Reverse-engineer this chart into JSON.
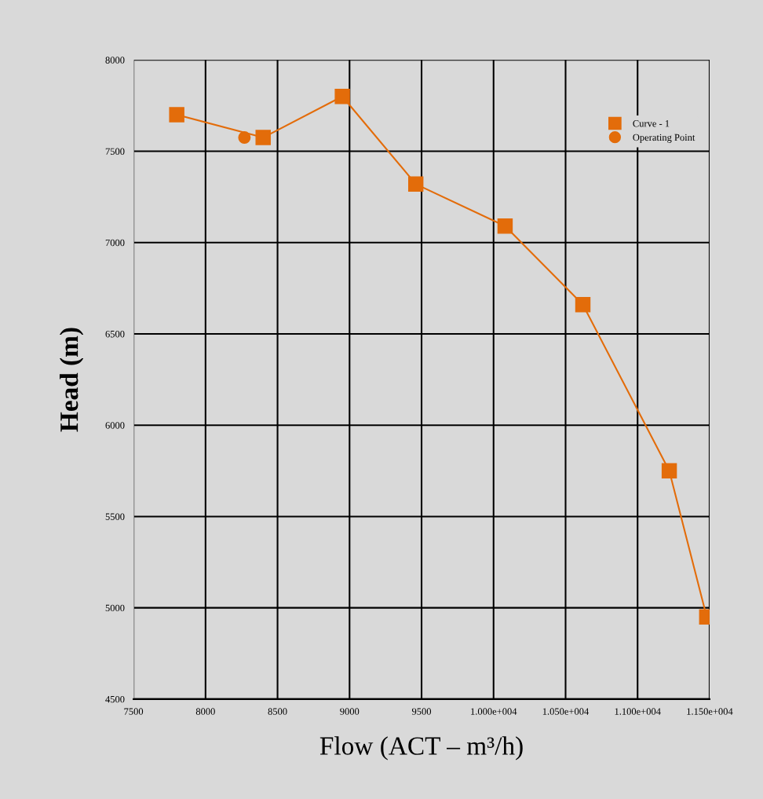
{
  "chart_data": {
    "type": "line",
    "xlabel": "Flow (ACT – m³/h)",
    "ylabel": "Head (m)",
    "xlim": [
      7500,
      11500
    ],
    "xticks": [
      7500,
      8000,
      8500,
      9000,
      9500,
      {
        "value": 10000,
        "label": "1.000e+004"
      },
      {
        "value": 10500,
        "label": "1.050e+004"
      },
      {
        "value": 11000,
        "label": "1.100e+004"
      },
      {
        "value": 11500,
        "label": "1.150e+004"
      }
    ],
    "ylim": [
      4500,
      8000
    ],
    "yticks": [
      8000,
      7500,
      7000,
      6500,
      6000,
      5500,
      5000,
      4500
    ],
    "grid": true,
    "legend": "top right",
    "series": [
      {
        "name": "Curve - 1",
        "marker": "square",
        "color": "#e36c0a",
        "x": [
          7800,
          8400,
          8950,
          9460,
          10080,
          10620,
          11220,
          11480
        ],
        "values": [
          7700,
          7575,
          7800,
          7320,
          7090,
          6660,
          5750,
          4950
        ]
      },
      {
        "name": "Operating Point",
        "type": "scatter",
        "marker": "circle",
        "color": "#e36c0a",
        "x": [
          8270
        ],
        "values": [
          7575
        ]
      }
    ]
  }
}
